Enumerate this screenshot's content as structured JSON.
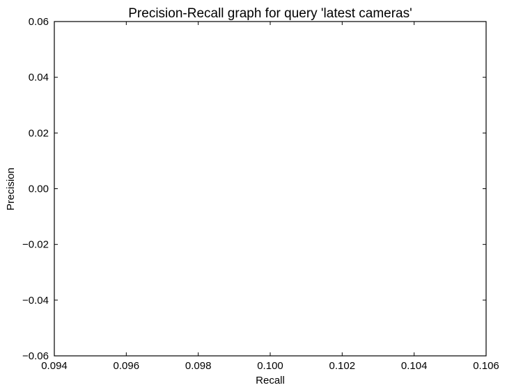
{
  "chart_data": {
    "type": "line",
    "title": "Precision-Recall graph for query 'latest cameras'",
    "xlabel": "Recall",
    "ylabel": "Precision",
    "xlim": [
      0.094,
      0.106
    ],
    "ylim": [
      -0.06,
      0.06
    ],
    "x_ticks": [
      0.094,
      0.096,
      0.098,
      0.1,
      0.102,
      0.104,
      0.106
    ],
    "y_ticks": [
      0.06,
      0.04,
      0.02,
      0.0,
      -0.02,
      -0.04,
      -0.06
    ],
    "x_tick_labels": [
      "0.094",
      "0.096",
      "0.098",
      "0.100",
      "0.102",
      "0.104",
      "0.106"
    ],
    "y_tick_labels": [
      "0.06",
      "0.04",
      "0.02",
      "0.00",
      "−0.02",
      "−0.04",
      "−0.06"
    ],
    "grid": false,
    "series": [
      {
        "x": [],
        "y": [],
        "color": "#0000ff"
      }
    ]
  }
}
